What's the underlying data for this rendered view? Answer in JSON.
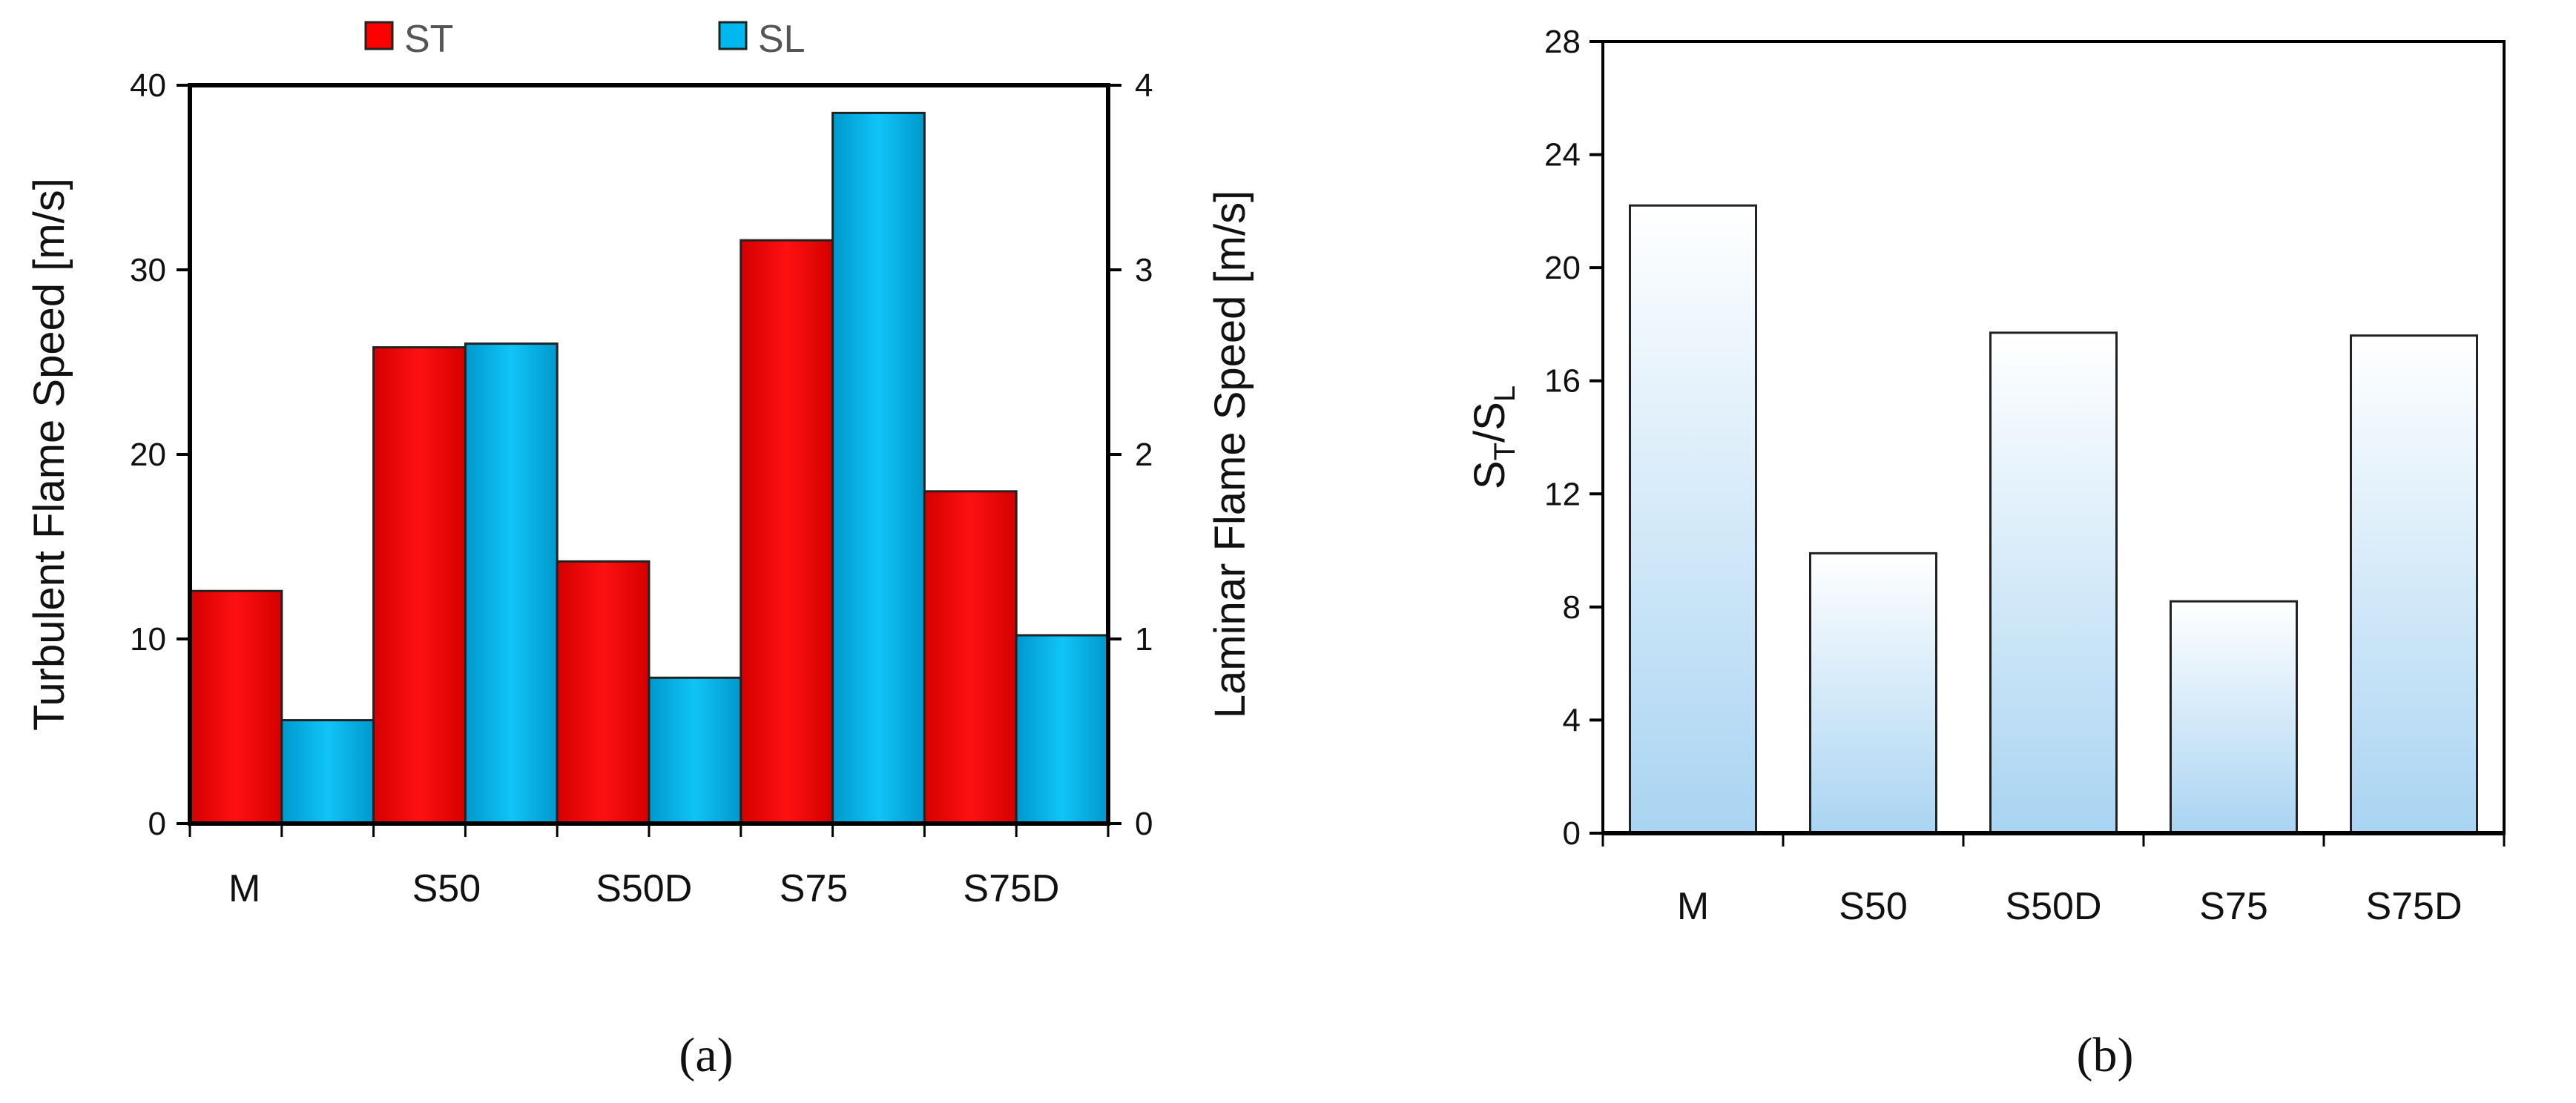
{
  "chart_data": [
    {
      "type": "bar",
      "panel_label": "(a)",
      "categories": [
        "M",
        "S50",
        "S50D",
        "S75",
        "S75D"
      ],
      "series": [
        {
          "name": "ST",
          "axis": "left",
          "color": "#ff0000",
          "values": [
            12.6,
            25.8,
            14.2,
            31.6,
            18.0
          ]
        },
        {
          "name": "SL",
          "axis": "right",
          "color": "#00b8ef",
          "values": [
            0.56,
            2.6,
            0.79,
            3.85,
            1.02
          ]
        }
      ],
      "ylabel": "Turbulent Flame Speed [m/s]",
      "y2label": "Laminar Flame Speed [m/s]",
      "ylim": [
        0,
        40
      ],
      "y2lim": [
        0,
        4
      ],
      "yticks": [
        "0",
        "10",
        "20",
        "30",
        "40"
      ],
      "y2ticks": [
        "0",
        "1",
        "2",
        "3",
        "4"
      ],
      "legend_position": "top",
      "grid": false
    },
    {
      "type": "bar",
      "panel_label": "(b)",
      "categories": [
        "M",
        "S50",
        "S50D",
        "S75",
        "S75D"
      ],
      "values": [
        22.2,
        9.9,
        17.7,
        8.2,
        17.6
      ],
      "ylabel": {
        "main": "S",
        "sub1": "T",
        "mid": "/S",
        "sub2": "L"
      },
      "ylim": [
        0,
        28
      ],
      "yticks": [
        "0",
        "4",
        "8",
        "12",
        "16",
        "20",
        "24",
        "28"
      ],
      "color_top": "#ffffff",
      "color_bottom": "#a9d4f2",
      "grid": false
    }
  ]
}
